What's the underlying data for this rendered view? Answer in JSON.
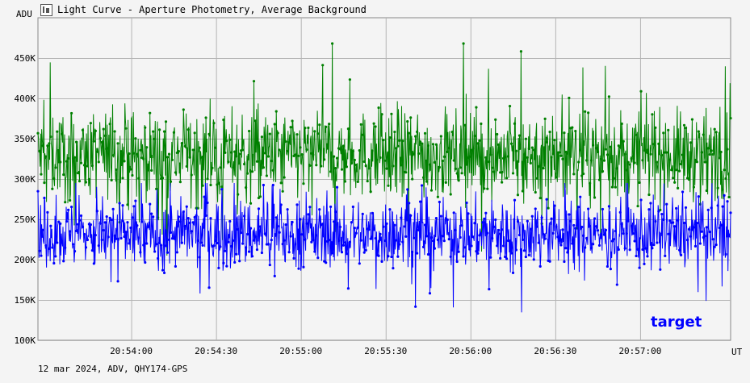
{
  "window": {
    "title": "Light Curve - Aperture Photometry, Average Background",
    "footer": "12 mar 2024, ADV, QHY174-GPS"
  },
  "colors": {
    "background": "#f4f4f4",
    "grid": "#b4b4b4",
    "target": "#0000ff",
    "comparison": "#008000"
  },
  "chart_data": {
    "type": "line",
    "ylabel": "ADU",
    "xlabel": "UT",
    "ylim": [
      100000,
      500000
    ],
    "xlim": [
      "20:53:27",
      "20:57:32"
    ],
    "yticks": [
      100000,
      150000,
      200000,
      250000,
      300000,
      350000,
      400000,
      450000
    ],
    "ytick_labels": [
      "100K",
      "150K",
      "200K",
      "250K",
      "300K",
      "350K",
      "400K",
      "450K"
    ],
    "xticks": [
      "20:54:00",
      "20:54:30",
      "20:55:00",
      "20:55:30",
      "20:56:00",
      "20:56:30",
      "20:57:00"
    ],
    "grid": true,
    "legend_position": "bottom-right",
    "series": [
      {
        "name": "",
        "color": "#008000",
        "mean": 330000,
        "scatter": 35000,
        "max": 468000,
        "min": 205000
      },
      {
        "name": "target",
        "color": "#0000ff",
        "mean": 232000,
        "scatter": 28000,
        "max": 295000,
        "min": 117000
      }
    ]
  }
}
